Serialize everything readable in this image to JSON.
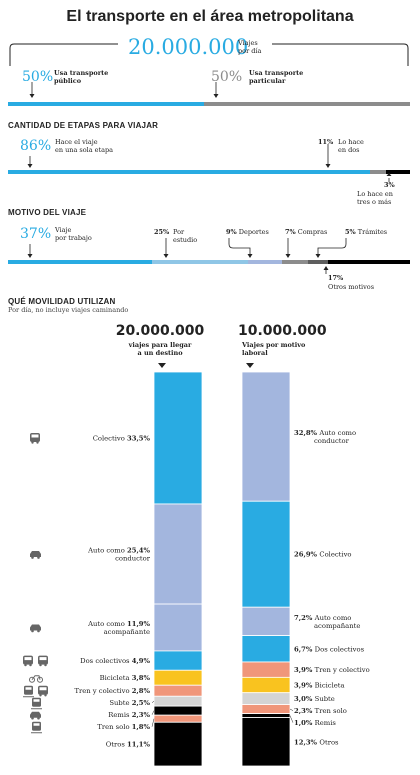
{
  "title": "El transporte en el área metropolitana",
  "colors": {
    "cyan": "#29abe2",
    "lightblue": "#a3b6de",
    "paleblue": "#8fc6e6",
    "gray": "#8c8c8c",
    "darkgray": "#5e5e5e",
    "black": "#000000",
    "salmon": "#f0967a",
    "yellow": "#f9c31f",
    "lightgray": "#d4d4d4"
  },
  "summary": {
    "total": "20.000.000",
    "total_caption_1": "Viajes",
    "total_caption_2": "por día",
    "public_pct": "50%",
    "public_label_1": "Usa transporte",
    "public_label_2": "público",
    "private_pct": "50%",
    "private_label_1": "Usa transporte",
    "private_label_2": "particular"
  },
  "stages": {
    "heading": "CANTIDAD DE ETAPAS PARA VIAJAR",
    "one_pct": "86%",
    "one_label_1": "Hace el viaje",
    "one_label_2": "en una sola etapa",
    "two_pct": "11%",
    "two_label_1": "Lo hace",
    "two_label_2": "en dos",
    "three_pct": "3%",
    "three_label_1": "Lo hace en",
    "three_label_2": "tres o más"
  },
  "motive": {
    "heading": "MOTIVO DEL VIAJE",
    "work_pct": "37%",
    "work_label_1": "Viaje",
    "work_label_2": "por trabajo",
    "study_pct": "25%",
    "study_label_1": "Por",
    "study_label_2": "estudio",
    "sports_pct": "9%",
    "sports_label": "Deportes",
    "shopping_pct": "7%",
    "shopping_label": "Compras",
    "procedures_pct": "5%",
    "procedures_label": "Trámites",
    "other_pct": "17%",
    "other_label": "Otros motivos"
  },
  "mobility": {
    "heading": "QUÉ MOVILIDAD UTILIZAN",
    "subheading": "Por día, no incluye viajes caminando",
    "left_total": "20.000.000",
    "left_caption_1": "viajes para llegar",
    "left_caption_2": "a un destino",
    "right_total": "10.000.000",
    "right_caption_1": "Viajes por motivo",
    "right_caption_2": "laboral"
  },
  "chart_data": [
    {
      "type": "bar",
      "title": "El transporte en el área metropolitana",
      "categories": [
        "Usa transporte público",
        "Usa transporte particular"
      ],
      "values": [
        50,
        50
      ]
    },
    {
      "type": "bar",
      "title": "CANTIDAD DE ETAPAS PARA VIAJAR",
      "categories": [
        "Hace el viaje en una sola etapa",
        "Lo hace en dos",
        "Lo hace en tres o más"
      ],
      "values": [
        86,
        11,
        3
      ]
    },
    {
      "type": "bar",
      "title": "MOTIVO DEL VIAJE",
      "categories": [
        "Viaje por trabajo",
        "Por estudio",
        "Deportes",
        "Compras",
        "Trámites",
        "Otros motivos"
      ],
      "values": [
        37,
        25,
        9,
        7,
        5,
        17
      ]
    },
    {
      "type": "bar",
      "title": "20.000.000 viajes para llegar a un destino",
      "categories": [
        "Colectivo",
        "Auto como conductor",
        "Auto como acompañante",
        "Dos colectivos",
        "Bicicleta",
        "Tren y colectivo",
        "Subte",
        "Remis",
        "Tren solo",
        "Otros"
      ],
      "values": [
        33.5,
        25.4,
        11.9,
        4.9,
        3.8,
        2.8,
        2.5,
        2.3,
        1.8,
        11.1
      ],
      "labels": [
        "33,5%",
        "25,4%",
        "11,9%",
        "4,9%",
        "3,8%",
        "2,8%",
        "2,5%",
        "2,3%",
        "1,8%",
        "11,1%"
      ]
    },
    {
      "type": "bar",
      "title": "10.000.000 Viajes por motivo laboral",
      "categories": [
        "Auto como conductor",
        "Colectivo",
        "Auto como acompañante",
        "Dos colectivos",
        "Tren y colectivo",
        "Bicicleta",
        "Subte",
        "Tren solo",
        "Remis",
        "Otros"
      ],
      "values": [
        32.8,
        26.9,
        7.2,
        6.7,
        3.9,
        3.9,
        3.0,
        2.3,
        1.0,
        12.3
      ],
      "labels": [
        "32,8%",
        "26,9%",
        "7,2%",
        "6,7%",
        "3,9%",
        "3,9%",
        "3,0%",
        "2,3%",
        "1,0%",
        "12,3%"
      ]
    }
  ]
}
